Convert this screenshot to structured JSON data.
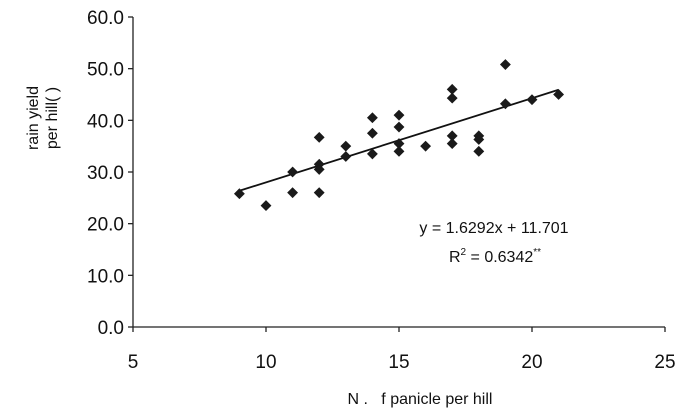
{
  "chart_data": {
    "type": "scatter",
    "title": "",
    "xlabel": "N .   f panicle per hill",
    "ylabel_lines": [
      "rain yield",
      "per hill(  )"
    ],
    "xlim": [
      5,
      25
    ],
    "ylim": [
      0,
      60
    ],
    "x_ticks": [
      5,
      10,
      15,
      20,
      25
    ],
    "x_tick_labels": [
      "5",
      "10",
      "15",
      "20",
      "25"
    ],
    "y_ticks": [
      0,
      10,
      20,
      30,
      40,
      50,
      60
    ],
    "y_tick_labels": [
      "0.0",
      "10.0",
      "20.0",
      "30.0",
      "40.0",
      "50.0",
      "60.0"
    ],
    "grid": false,
    "marker_color": "#1a1a1a",
    "series": [
      {
        "marker": "diamond",
        "points": [
          {
            "x": 9,
            "y": 25.8
          },
          {
            "x": 10,
            "y": 23.5
          },
          {
            "x": 11,
            "y": 30.0
          },
          {
            "x": 11,
            "y": 26.0
          },
          {
            "x": 12,
            "y": 36.7
          },
          {
            "x": 12,
            "y": 31.5
          },
          {
            "x": 12,
            "y": 30.5
          },
          {
            "x": 12,
            "y": 26.0
          },
          {
            "x": 13,
            "y": 35.0
          },
          {
            "x": 13,
            "y": 33.0
          },
          {
            "x": 14,
            "y": 40.5
          },
          {
            "x": 14,
            "y": 37.5
          },
          {
            "x": 14,
            "y": 33.5
          },
          {
            "x": 15,
            "y": 41.0
          },
          {
            "x": 15,
            "y": 38.7
          },
          {
            "x": 15,
            "y": 35.5
          },
          {
            "x": 15,
            "y": 34.0
          },
          {
            "x": 16,
            "y": 35.0
          },
          {
            "x": 17,
            "y": 46.0
          },
          {
            "x": 17,
            "y": 44.3
          },
          {
            "x": 17,
            "y": 37.0
          },
          {
            "x": 17,
            "y": 35.5
          },
          {
            "x": 18,
            "y": 37.0
          },
          {
            "x": 18,
            "y": 36.3
          },
          {
            "x": 18,
            "y": 34.0
          },
          {
            "x": 19,
            "y": 50.8
          },
          {
            "x": 19,
            "y": 43.2
          },
          {
            "x": 20,
            "y": 44.0
          },
          {
            "x": 21,
            "y": 45.0
          }
        ]
      }
    ],
    "trendline": {
      "slope": 1.6292,
      "intercept": 11.701,
      "x_start": 9,
      "x_end": 21
    },
    "annotations": {
      "equation": "y = 1.6292x + 11.701",
      "r2_prefix": "R",
      "r2_sup": "2",
      "r2_value": " = 0.6342",
      "r2_stars": "**"
    }
  }
}
